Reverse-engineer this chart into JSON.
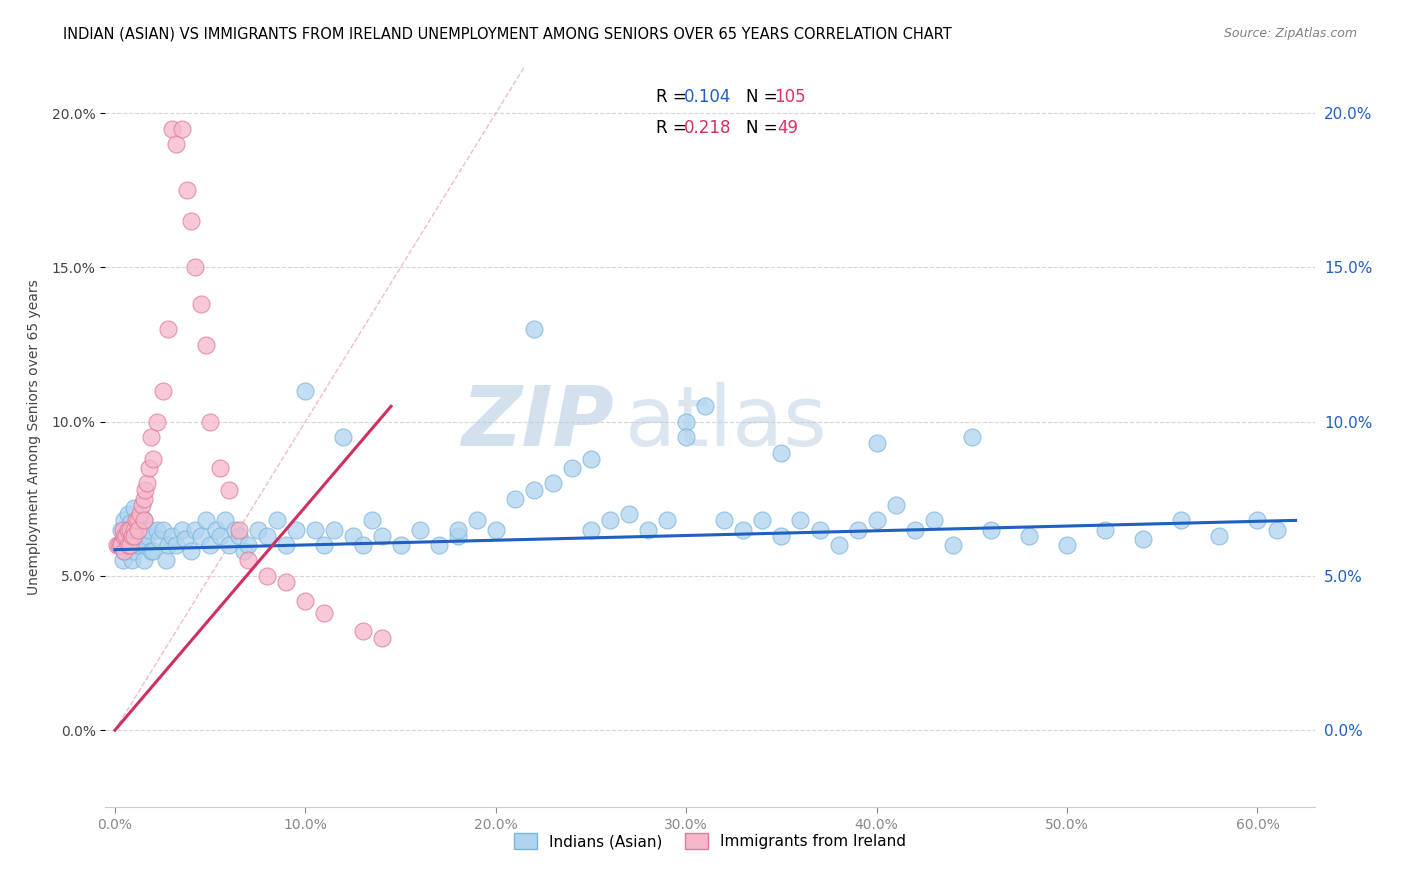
{
  "title": "INDIAN (ASIAN) VS IMMIGRANTS FROM IRELAND UNEMPLOYMENT AMONG SENIORS OVER 65 YEARS CORRELATION CHART",
  "source": "Source: ZipAtlas.com",
  "ylabel": "Unemployment Among Seniors over 65 years",
  "xlabel_ticks": [
    "0.0%",
    "10.0%",
    "20.0%",
    "30.0%",
    "40.0%",
    "50.0%",
    "60.0%"
  ],
  "xlabel_vals": [
    0.0,
    0.1,
    0.2,
    0.3,
    0.4,
    0.5,
    0.6
  ],
  "ylabel_ticks": [
    "0.0%",
    "5.0%",
    "10.0%",
    "15.0%",
    "20.0%"
  ],
  "ylabel_vals": [
    0.0,
    0.05,
    0.1,
    0.15,
    0.2
  ],
  "xlim": [
    -0.005,
    0.63
  ],
  "ylim": [
    -0.025,
    0.215
  ],
  "blue_color": "#afd4f0",
  "blue_edge": "#7ab4db",
  "pink_color": "#f5b8cb",
  "pink_edge": "#e07898",
  "blue_line_color": "#2060c0",
  "pink_line_color": "#d03060",
  "R_blue": "0.104",
  "N_blue": "105",
  "R_pink": "0.218",
  "N_pink": "49",
  "legend_blue_label": "Indians (Asian)",
  "legend_pink_label": "Immigrants from Ireland",
  "watermark_zip": "ZIP",
  "watermark_atlas": "atlas",
  "blue_scatter_x": [
    0.002,
    0.003,
    0.004,
    0.005,
    0.005,
    0.006,
    0.007,
    0.007,
    0.008,
    0.009,
    0.01,
    0.01,
    0.011,
    0.012,
    0.013,
    0.014,
    0.015,
    0.015,
    0.016,
    0.017,
    0.018,
    0.019,
    0.02,
    0.022,
    0.023,
    0.025,
    0.027,
    0.028,
    0.03,
    0.032,
    0.035,
    0.037,
    0.04,
    0.042,
    0.045,
    0.048,
    0.05,
    0.053,
    0.055,
    0.058,
    0.06,
    0.063,
    0.065,
    0.068,
    0.07,
    0.075,
    0.08,
    0.085,
    0.09,
    0.095,
    0.1,
    0.105,
    0.11,
    0.115,
    0.12,
    0.125,
    0.13,
    0.135,
    0.14,
    0.15,
    0.16,
    0.17,
    0.18,
    0.19,
    0.2,
    0.21,
    0.22,
    0.23,
    0.24,
    0.25,
    0.26,
    0.27,
    0.28,
    0.29,
    0.3,
    0.31,
    0.32,
    0.33,
    0.34,
    0.35,
    0.36,
    0.37,
    0.38,
    0.39,
    0.4,
    0.41,
    0.42,
    0.43,
    0.44,
    0.46,
    0.48,
    0.5,
    0.52,
    0.54,
    0.56,
    0.58,
    0.6,
    0.61,
    0.25,
    0.3,
    0.35,
    0.4,
    0.45,
    0.18,
    0.22
  ],
  "blue_scatter_y": [
    0.06,
    0.065,
    0.055,
    0.068,
    0.058,
    0.062,
    0.07,
    0.063,
    0.067,
    0.055,
    0.072,
    0.058,
    0.06,
    0.065,
    0.06,
    0.063,
    0.068,
    0.055,
    0.06,
    0.063,
    0.065,
    0.058,
    0.058,
    0.065,
    0.062,
    0.065,
    0.055,
    0.06,
    0.063,
    0.06,
    0.065,
    0.062,
    0.058,
    0.065,
    0.063,
    0.068,
    0.06,
    0.065,
    0.063,
    0.068,
    0.06,
    0.065,
    0.063,
    0.058,
    0.06,
    0.065,
    0.063,
    0.068,
    0.06,
    0.065,
    0.11,
    0.065,
    0.06,
    0.065,
    0.095,
    0.063,
    0.06,
    0.068,
    0.063,
    0.06,
    0.065,
    0.06,
    0.063,
    0.068,
    0.065,
    0.075,
    0.078,
    0.08,
    0.085,
    0.065,
    0.068,
    0.07,
    0.065,
    0.068,
    0.1,
    0.105,
    0.068,
    0.065,
    0.068,
    0.063,
    0.068,
    0.065,
    0.06,
    0.065,
    0.068,
    0.073,
    0.065,
    0.068,
    0.06,
    0.065,
    0.063,
    0.06,
    0.065,
    0.062,
    0.068,
    0.063,
    0.068,
    0.065,
    0.088,
    0.095,
    0.09,
    0.093,
    0.095,
    0.065,
    0.13
  ],
  "pink_scatter_x": [
    0.001,
    0.002,
    0.003,
    0.003,
    0.004,
    0.005,
    0.005,
    0.006,
    0.007,
    0.007,
    0.008,
    0.008,
    0.009,
    0.01,
    0.01,
    0.011,
    0.012,
    0.012,
    0.013,
    0.014,
    0.015,
    0.015,
    0.016,
    0.017,
    0.018,
    0.019,
    0.02,
    0.022,
    0.025,
    0.028,
    0.03,
    0.032,
    0.035,
    0.038,
    0.04,
    0.042,
    0.045,
    0.048,
    0.05,
    0.055,
    0.06,
    0.065,
    0.07,
    0.08,
    0.09,
    0.1,
    0.11,
    0.13,
    0.14
  ],
  "pink_scatter_y": [
    0.06,
    0.06,
    0.06,
    0.06,
    0.065,
    0.063,
    0.058,
    0.063,
    0.065,
    0.06,
    0.065,
    0.06,
    0.063,
    0.065,
    0.063,
    0.068,
    0.068,
    0.065,
    0.07,
    0.073,
    0.075,
    0.068,
    0.078,
    0.08,
    0.085,
    0.095,
    0.088,
    0.1,
    0.11,
    0.13,
    0.195,
    0.19,
    0.195,
    0.175,
    0.165,
    0.15,
    0.138,
    0.125,
    0.1,
    0.085,
    0.078,
    0.065,
    0.055,
    0.05,
    0.048,
    0.042,
    0.038,
    0.032,
    0.03
  ],
  "blue_trend_x": [
    0.0,
    0.62
  ],
  "blue_trend_y": [
    0.0585,
    0.068
  ],
  "pink_trend_x": [
    0.0,
    0.145
  ],
  "pink_trend_y": [
    0.0,
    0.105
  ]
}
